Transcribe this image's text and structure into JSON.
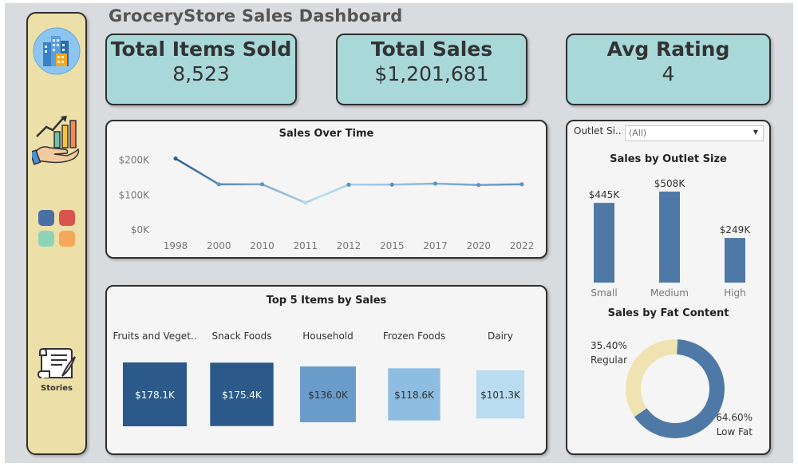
{
  "title": "GroceryStore Sales Dashboard",
  "sidebar": {
    "stories_label": "Stories",
    "tile_colors": [
      "#4a6fa5",
      "#d9534f",
      "#8fd3b6",
      "#f5a85a"
    ]
  },
  "kpis": [
    {
      "label": "Total Items Sold",
      "value": "8,523"
    },
    {
      "label": "Total Sales",
      "value": "$1,201,681"
    },
    {
      "label": "Avg Rating",
      "value": "4"
    }
  ],
  "filter": {
    "label": "Outlet Si..",
    "value": "(All)"
  },
  "charts": {
    "sales_over_time": {
      "title": "Sales Over Time",
      "y_ticks": [
        "$0K",
        "$100K",
        "$200K"
      ]
    },
    "top_items": {
      "title": "Top 5 Items by Sales"
    },
    "outlet_size": {
      "title": "Sales by Outlet Size"
    },
    "fat_content": {
      "title": "Sales by Fat Content"
    }
  },
  "chart_data": [
    {
      "type": "line",
      "title": "Sales Over Time",
      "x": [
        "1998",
        "2000",
        "2010",
        "2011",
        "2012",
        "2015",
        "2017",
        "2020",
        "2022"
      ],
      "values": [
        205000,
        131000,
        131000,
        78000,
        130000,
        130000,
        133000,
        129000,
        131000
      ],
      "y_ticks": [
        "$0K",
        "$100K",
        "$200K"
      ],
      "ylim": [
        0,
        220000
      ],
      "grid": false
    },
    {
      "type": "bar",
      "title": "Top 5 Items by Sales",
      "categories": [
        "Fruits and Veget..",
        "Snack Foods",
        "Household",
        "Frozen Foods",
        "Dairy"
      ],
      "values": [
        178.1,
        175.4,
        136.0,
        118.6,
        101.3
      ],
      "labels": [
        "$178.1K",
        "$175.4K",
        "$136.0K",
        "$118.6K",
        "$101.3K"
      ],
      "colors": [
        "#2b5a8a",
        "#2b5a8a",
        "#6a9cc9",
        "#8dbde0",
        "#b9dcf0"
      ]
    },
    {
      "type": "bar",
      "title": "Sales by Outlet Size",
      "categories": [
        "Small",
        "Medium",
        "High"
      ],
      "values": [
        445,
        508,
        249
      ],
      "labels": [
        "$445K",
        "$508K",
        "$249K"
      ],
      "color": "#4e79a7"
    },
    {
      "type": "pie",
      "title": "Sales by Fat Content",
      "slices": [
        {
          "label": "Low Fat",
          "percent": 64.6,
          "percent_label": "64.60%",
          "color": "#4e79a7"
        },
        {
          "label": "Regular",
          "percent": 35.4,
          "percent_label": "35.40%",
          "color": "#efe3b2"
        }
      ]
    }
  ]
}
